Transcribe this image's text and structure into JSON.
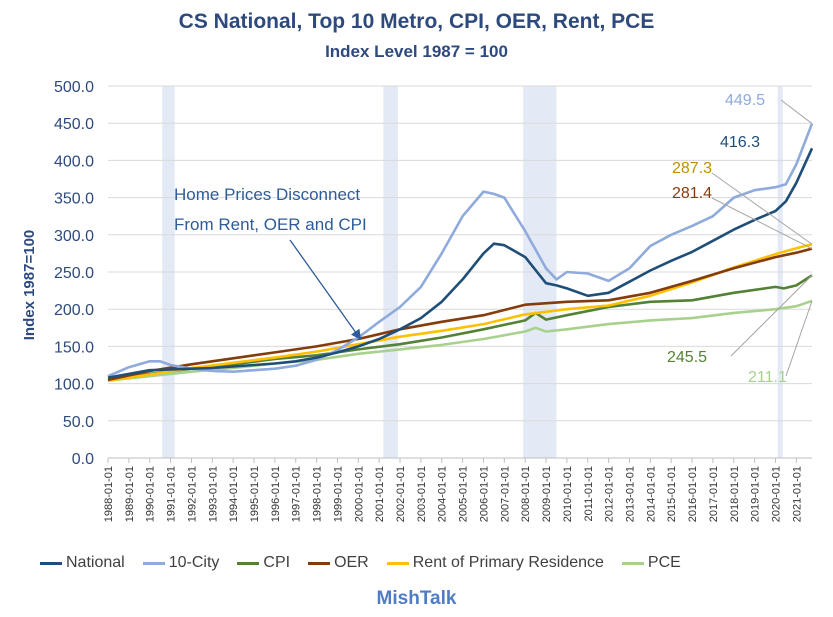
{
  "chart_data": {
    "type": "line",
    "title": "CS National, Top 10 Metro, CPI, OER, Rent, PCE",
    "subtitle": "Index Level 1987 = 100",
    "ylabel": "Index 1987=100",
    "xlabel": "",
    "ylim": [
      0,
      500
    ],
    "yticks": [
      "0.0",
      "50.0",
      "100.0",
      "150.0",
      "200.0",
      "250.0",
      "300.0",
      "350.0",
      "400.0",
      "450.0",
      "500.0"
    ],
    "xlim": [
      1988.0,
      2021.75
    ],
    "xticks": [
      "1988-01-01",
      "1989-01-01",
      "1990-01-01",
      "1991-01-01",
      "1992-01-01",
      "1993-01-01",
      "1994-01-01",
      "1995-01-01",
      "1996-01-01",
      "1997-01-01",
      "1998-01-01",
      "1999-01-01",
      "2000-01-01",
      "2001-01-01",
      "2002-01-01",
      "2003-01-01",
      "2004-01-01",
      "2005-01-01",
      "2006-01-01",
      "2007-01-01",
      "2008-01-01",
      "2009-01-01",
      "2010-01-01",
      "2011-01-01",
      "2012-01-01",
      "2013-01-01",
      "2014-01-01",
      "2015-01-01",
      "2016-01-01",
      "2017-01-01",
      "2018-01-01",
      "2019-01-01",
      "2020-01-01",
      "2021-01-01"
    ],
    "recessions": [
      [
        1990.6,
        1991.2
      ],
      [
        2001.2,
        2001.9
      ],
      [
        2007.9,
        2009.5
      ],
      [
        2020.1,
        2020.35
      ]
    ],
    "grid": true,
    "legend_position": "bottom",
    "series": [
      {
        "name": "National",
        "color": "#1f4e79",
        "end_label": "416.3",
        "x": [
          1988,
          1989,
          1990,
          1991,
          1992,
          1993,
          1994,
          1995,
          1996,
          1997,
          1998,
          1999,
          2000,
          2001,
          2002,
          2003,
          2004,
          2005,
          2006,
          2006.5,
          2007,
          2008,
          2009,
          2009.5,
          2010,
          2011,
          2012,
          2013,
          2014,
          2015,
          2016,
          2017,
          2018,
          2019,
          2020,
          2020.5,
          2021,
          2021.75
        ],
        "values": [
          108,
          113,
          118,
          119,
          120,
          121,
          123,
          125,
          127,
          130,
          135,
          142,
          150,
          160,
          173,
          188,
          210,
          240,
          275,
          288,
          286,
          270,
          235,
          232,
          228,
          218,
          222,
          237,
          252,
          265,
          277,
          292,
          307,
          320,
          332,
          345,
          370,
          416.3
        ]
      },
      {
        "name": "10-City",
        "color": "#8faadc",
        "end_label": "449.5",
        "x": [
          1988,
          1989,
          1990,
          1990.5,
          1991,
          1992,
          1993,
          1994,
          1995,
          1996,
          1997,
          1998,
          1999,
          2000,
          2001,
          2002,
          2003,
          2004,
          2005,
          2006,
          2006.5,
          2007,
          2008,
          2009,
          2009.5,
          2010,
          2011,
          2012,
          2013,
          2014,
          2015,
          2016,
          2017,
          2018,
          2019,
          2020,
          2020.5,
          2021,
          2021.75
        ],
        "values": [
          110,
          122,
          130,
          130,
          125,
          120,
          117,
          116,
          118,
          120,
          124,
          132,
          145,
          162,
          183,
          203,
          230,
          275,
          325,
          358,
          355,
          350,
          305,
          255,
          240,
          250,
          248,
          238,
          255,
          285,
          300,
          312,
          325,
          350,
          360,
          364,
          368,
          395,
          449.5
        ]
      },
      {
        "name": "CPI",
        "color": "#548235",
        "end_label": "245.5",
        "x": [
          1988,
          1990,
          1992,
          1994,
          1996,
          1998,
          2000,
          2002,
          2004,
          2006,
          2008,
          2008.5,
          2009,
          2010,
          2012,
          2014,
          2016,
          2018,
          2020,
          2020.4,
          2021,
          2021.75
        ],
        "values": [
          104,
          113,
          120,
          126,
          133,
          138,
          146,
          153,
          162,
          173,
          185,
          195,
          186,
          192,
          203,
          210,
          212,
          222,
          230,
          228,
          232,
          245.5
        ]
      },
      {
        "name": "OER",
        "color": "#843c0c",
        "end_label": "281.4",
        "x": [
          1988,
          1990,
          1992,
          1994,
          1996,
          1998,
          2000,
          2002,
          2004,
          2006,
          2008,
          2010,
          2012,
          2014,
          2016,
          2018,
          2020,
          2021,
          2021.75
        ],
        "values": [
          105,
          117,
          126,
          134,
          142,
          150,
          160,
          173,
          183,
          192,
          206,
          210,
          212,
          222,
          238,
          255,
          270,
          276,
          281.4
        ]
      },
      {
        "name": "Rent of Primary Residence",
        "color": "#ffc000",
        "end_label": "287.3",
        "x": [
          1988,
          1990,
          1992,
          1994,
          1996,
          1998,
          2000,
          2002,
          2004,
          2006,
          2008,
          2010,
          2012,
          2014,
          2016,
          2018,
          2020,
          2021,
          2021.75
        ],
        "values": [
          104,
          112,
          121,
          128,
          135,
          143,
          153,
          163,
          171,
          180,
          193,
          200,
          205,
          218,
          236,
          256,
          274,
          282,
          287.3
        ]
      },
      {
        "name": "PCE",
        "color": "#a9d18e",
        "end_label": "211.1",
        "x": [
          1988,
          1990,
          1992,
          1994,
          1996,
          1998,
          2000,
          2002,
          2004,
          2006,
          2008,
          2008.5,
          2009,
          2010,
          2012,
          2014,
          2016,
          2018,
          2020,
          2021,
          2021.75
        ],
        "values": [
          104,
          110,
          116,
          121,
          127,
          132,
          140,
          146,
          152,
          160,
          170,
          175,
          170,
          173,
          180,
          185,
          188,
          195,
          200,
          204,
          211.1
        ]
      }
    ],
    "annotation": {
      "line1": "Home Prices Disconnect",
      "line2": "From Rent, OER and CPI",
      "target_x": 2000.1,
      "target_y": 160
    }
  },
  "branding": "MishTalk"
}
